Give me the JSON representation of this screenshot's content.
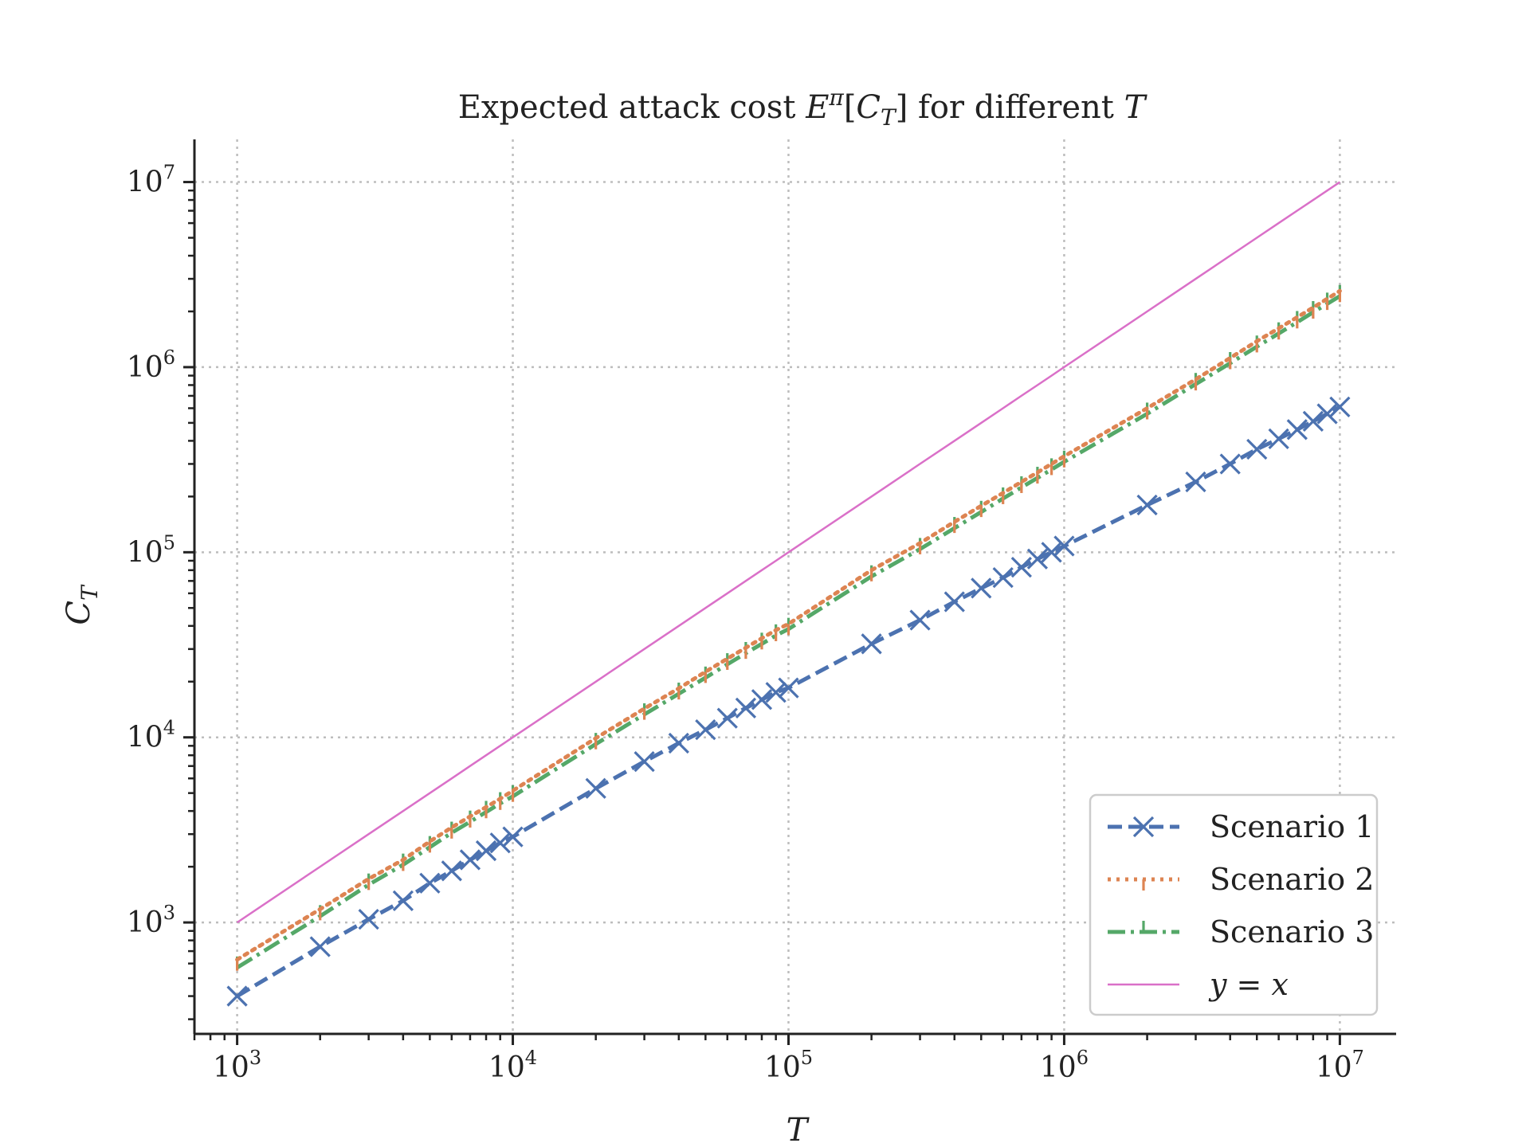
{
  "chart_data": {
    "type": "line",
    "title_parts": {
      "prefix": "Expected attack cost ",
      "E": "E",
      "pi": "π",
      "bracket_open": "[",
      "C": "C",
      "T_sub": "T",
      "bracket_close": "]",
      "suffix": " for different ",
      "T": "T"
    },
    "xlabel": "T",
    "ylabel": "C",
    "ylabel_sub": "T",
    "xscale": "log",
    "yscale": "log",
    "xlim": [
      700,
      16000000
    ],
    "ylim": [
      250,
      17000000
    ],
    "grid": true,
    "legend_position": "lower-right",
    "x_ticks": [
      {
        "value": 1000,
        "base": "10",
        "exp": "3"
      },
      {
        "value": 10000,
        "base": "10",
        "exp": "4"
      },
      {
        "value": 100000,
        "base": "10",
        "exp": "5"
      },
      {
        "value": 1000000,
        "base": "10",
        "exp": "6"
      },
      {
        "value": 10000000,
        "base": "10",
        "exp": "7"
      }
    ],
    "y_ticks": [
      {
        "value": 1000,
        "base": "10",
        "exp": "3"
      },
      {
        "value": 10000,
        "base": "10",
        "exp": "4"
      },
      {
        "value": 100000,
        "base": "10",
        "exp": "5"
      },
      {
        "value": 1000000,
        "base": "10",
        "exp": "6"
      },
      {
        "value": 10000000,
        "base": "10",
        "exp": "7"
      }
    ],
    "x": [
      1000,
      2000,
      3000,
      4000,
      5000,
      6000,
      7000,
      8000,
      9000,
      10000,
      20000,
      30000,
      40000,
      50000,
      60000,
      70000,
      80000,
      90000,
      100000,
      200000,
      300000,
      400000,
      500000,
      600000,
      700000,
      800000,
      900000,
      1000000,
      2000000,
      3000000,
      4000000,
      5000000,
      6000000,
      7000000,
      8000000,
      9000000,
      10000000
    ],
    "series": [
      {
        "name": "Scenario 1",
        "color": "#4c72b0",
        "linestyle": "dashed",
        "marker": "x",
        "values": [
          400,
          740,
          1040,
          1310,
          1630,
          1900,
          2180,
          2440,
          2690,
          2900,
          5300,
          7400,
          9300,
          11000,
          12700,
          14400,
          16000,
          17500,
          18500,
          32000,
          43000,
          54000,
          64000,
          73000,
          83000,
          92000,
          100000,
          108000,
          180000,
          240000,
          300000,
          360000,
          410000,
          460000,
          510000,
          560000,
          610000
        ]
      },
      {
        "name": "Scenario 2",
        "color": "#dd8452",
        "linestyle": "dotted",
        "marker": "tick-down",
        "values": [
          630,
          1180,
          1720,
          2180,
          2740,
          3260,
          3740,
          4200,
          4660,
          5150,
          9900,
          14300,
          18400,
          22600,
          26600,
          30500,
          34300,
          38000,
          41000,
          80000,
          112000,
          146000,
          178000,
          209000,
          240000,
          270000,
          300000,
          330000,
          600000,
          860000,
          1120000,
          1380000,
          1620000,
          1860000,
          2100000,
          2340000,
          2580000
        ]
      },
      {
        "name": "Scenario 3",
        "color": "#55a868",
        "linestyle": "dashdot",
        "marker": "tick-up",
        "values": [
          570,
          1080,
          1600,
          2050,
          2550,
          3050,
          3500,
          3950,
          4400,
          4800,
          9200,
          13300,
          17200,
          21000,
          24800,
          28500,
          32000,
          35500,
          38500,
          74000,
          104000,
          135000,
          165000,
          195000,
          224000,
          252000,
          280000,
          308000,
          560000,
          810000,
          1050000,
          1290000,
          1520000,
          1750000,
          1980000,
          2200000,
          2420000
        ]
      },
      {
        "name_parts": {
          "lhs": "y",
          "eq": " = ",
          "rhs": "x"
        },
        "color": "#da70c8",
        "linestyle": "solid",
        "marker": "none",
        "values": [
          1000,
          2000,
          3000,
          4000,
          5000,
          6000,
          7000,
          8000,
          9000,
          10000,
          20000,
          30000,
          40000,
          50000,
          60000,
          70000,
          80000,
          90000,
          100000,
          200000,
          300000,
          400000,
          500000,
          600000,
          700000,
          800000,
          900000,
          1000000,
          2000000,
          3000000,
          4000000,
          5000000,
          6000000,
          7000000,
          8000000,
          9000000,
          10000000
        ]
      }
    ]
  }
}
